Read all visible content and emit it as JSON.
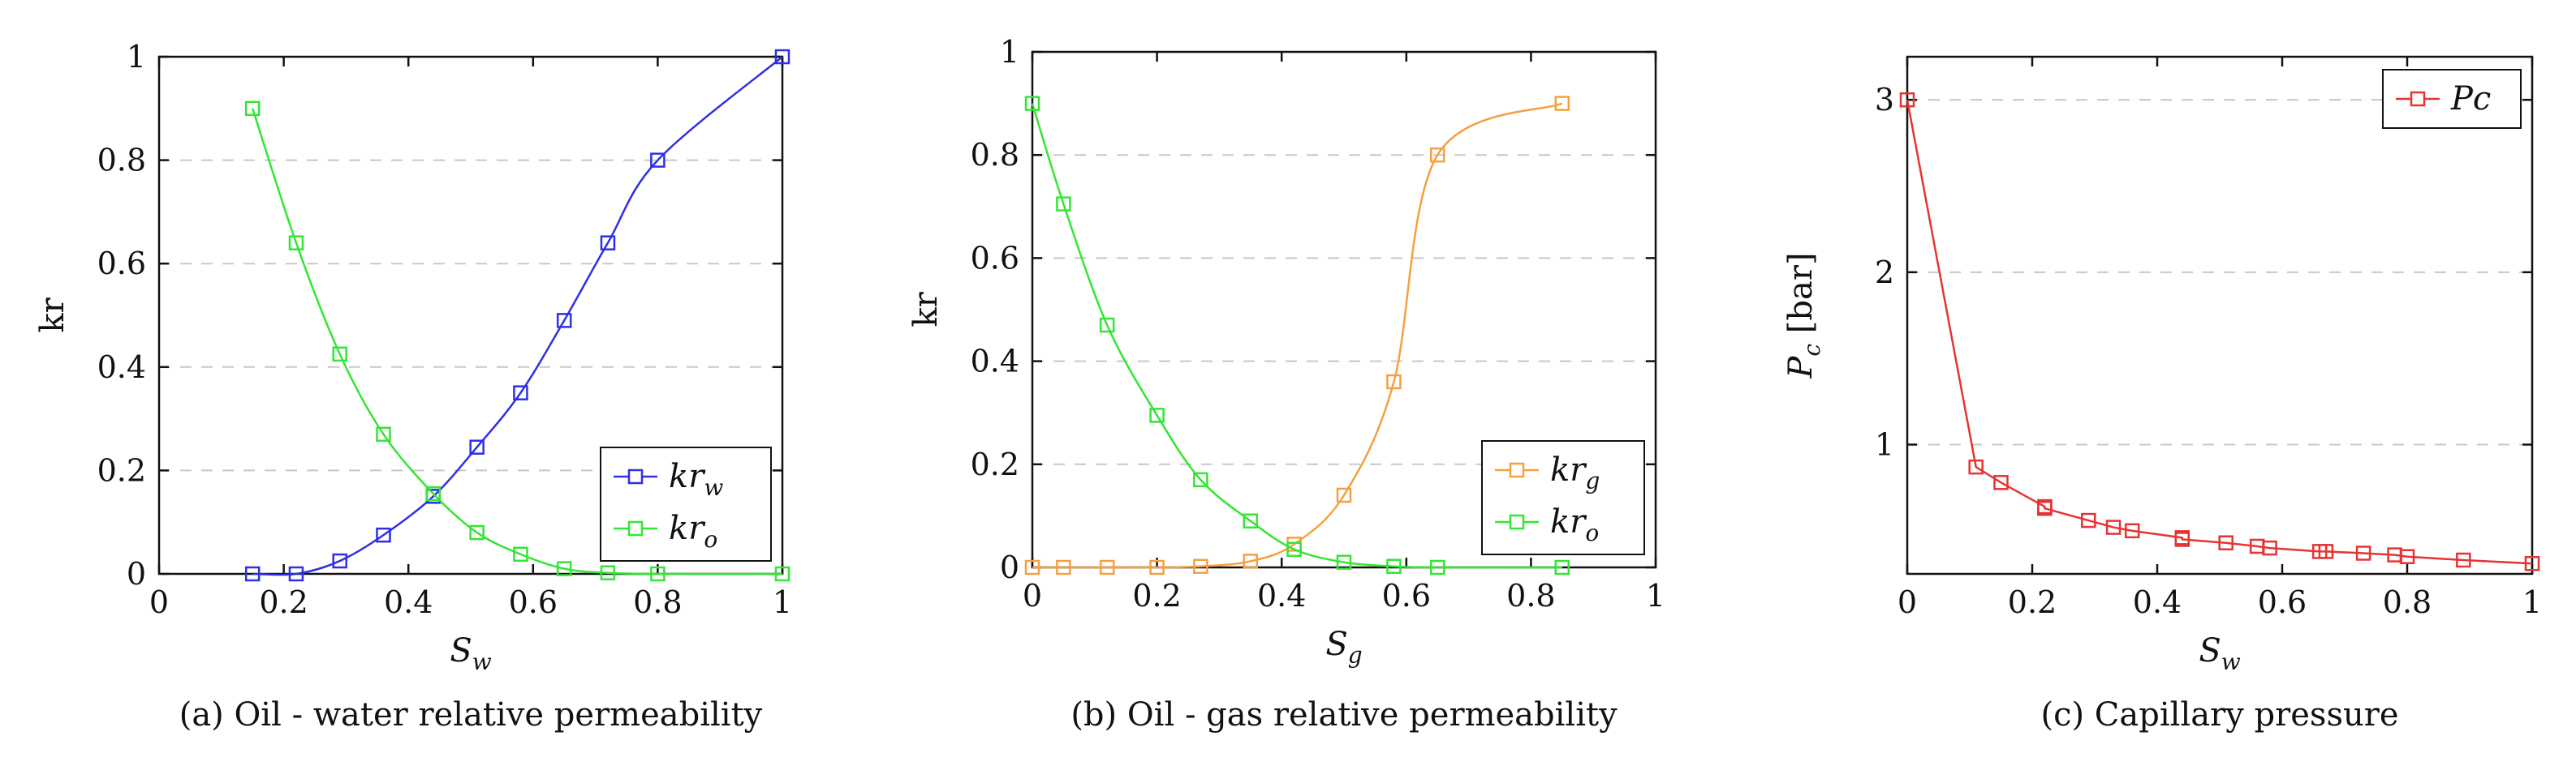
{
  "chart_data": [
    {
      "type": "line",
      "panel_label": "(a)",
      "caption": "(a) Oil - water relative permeability",
      "xlabel_base": "S",
      "xlabel_sub": "w",
      "ylabel_main": "kr",
      "ylabel_sub": "",
      "ylabel_suffix": "",
      "xlim": [
        0,
        1
      ],
      "ylim": [
        0,
        1
      ],
      "xticks": [
        0,
        0.2,
        0.4,
        0.6,
        0.8,
        1
      ],
      "xtick_labels": [
        "0",
        "0.2",
        "0.4",
        "0.6",
        "0.8",
        "1"
      ],
      "yticks": [
        0,
        0.2,
        0.4,
        0.6,
        0.8,
        1
      ],
      "ytick_labels": [
        "0",
        "0.2",
        "0.4",
        "0.6",
        "0.8",
        "1"
      ],
      "grid": "horizontal-dashed",
      "legend_position": "bottom-right",
      "smooth": true,
      "series": [
        {
          "name": "kr_w",
          "label_base": "kr",
          "label_sub": "w",
          "color": "#2f2fe6",
          "x": [
            0.15,
            0.22,
            0.29,
            0.36,
            0.44,
            0.51,
            0.58,
            0.65,
            0.72,
            0.8,
            1.0
          ],
          "y": [
            0.0,
            0.0,
            0.025,
            0.075,
            0.15,
            0.245,
            0.35,
            0.49,
            0.64,
            0.8,
            1.0
          ]
        },
        {
          "name": "kr_o",
          "label_base": "kr",
          "label_sub": "o",
          "color": "#33e633",
          "x": [
            0.15,
            0.22,
            0.29,
            0.36,
            0.44,
            0.51,
            0.58,
            0.65,
            0.72,
            0.8,
            1.0
          ],
          "y": [
            0.9,
            0.64,
            0.425,
            0.27,
            0.155,
            0.08,
            0.038,
            0.01,
            0.002,
            0.0,
            0.0
          ]
        }
      ]
    },
    {
      "type": "line",
      "panel_label": "(b)",
      "caption": "(b) Oil - gas relative permeability",
      "xlabel_base": "S",
      "xlabel_sub": "g",
      "ylabel_main": "kr",
      "ylabel_sub": "",
      "ylabel_suffix": "",
      "xlim": [
        0,
        1
      ],
      "ylim": [
        0,
        1
      ],
      "xticks": [
        0,
        0.2,
        0.4,
        0.6,
        0.8,
        1
      ],
      "xtick_labels": [
        "0",
        "0.2",
        "0.4",
        "0.6",
        "0.8",
        "1"
      ],
      "yticks": [
        0,
        0.2,
        0.4,
        0.6,
        0.8,
        1
      ],
      "ytick_labels": [
        "0",
        "0.2",
        "0.4",
        "0.6",
        "0.8",
        "1"
      ],
      "grid": "horizontal-dashed",
      "legend_position": "bottom-right",
      "smooth": true,
      "series": [
        {
          "name": "kr_g",
          "label_base": "kr",
          "label_sub": "g",
          "color": "#f5a040",
          "x": [
            0.0,
            0.05,
            0.12,
            0.2,
            0.27,
            0.35,
            0.42,
            0.5,
            0.58,
            0.65,
            0.85
          ],
          "y": [
            0.0,
            0.0,
            0.0,
            0.0,
            0.002,
            0.012,
            0.045,
            0.14,
            0.36,
            0.8,
            0.9
          ]
        },
        {
          "name": "kr_o",
          "label_base": "kr",
          "label_sub": "o",
          "color": "#33e633",
          "x": [
            0.0,
            0.05,
            0.12,
            0.2,
            0.27,
            0.35,
            0.42,
            0.5,
            0.58,
            0.65,
            0.85
          ],
          "y": [
            0.9,
            0.705,
            0.47,
            0.295,
            0.17,
            0.09,
            0.035,
            0.01,
            0.002,
            0.0,
            0.0
          ]
        }
      ]
    },
    {
      "type": "line",
      "panel_label": "(c)",
      "caption": "(c) Capillary pressure",
      "xlabel_base": "S",
      "xlabel_sub": "w",
      "ylabel_main": "P",
      "ylabel_sub": "c",
      "ylabel_suffix": " [bar]",
      "xlim": [
        0,
        1
      ],
      "ylim": [
        0.25,
        3.25
      ],
      "xticks": [
        0,
        0.2,
        0.4,
        0.6,
        0.8,
        1
      ],
      "xtick_labels": [
        "0",
        "0.2",
        "0.4",
        "0.6",
        "0.8",
        "1"
      ],
      "yticks": [
        1,
        2,
        3
      ],
      "ytick_labels": [
        "1",
        "2",
        "3"
      ],
      "grid": "horizontal-dashed",
      "legend_position": "top-right",
      "smooth": false,
      "series": [
        {
          "name": "Pc",
          "label_base": "Pc",
          "label_sub": "",
          "color": "#e63333",
          "x": [
            0.0,
            0.11,
            0.15,
            0.22,
            0.22,
            0.29,
            0.33,
            0.36,
            0.44,
            0.44,
            0.51,
            0.56,
            0.58,
            0.66,
            0.67,
            0.73,
            0.78,
            0.8,
            0.89,
            1.0
          ],
          "y": [
            3.0,
            0.87,
            0.78,
            0.64,
            0.63,
            0.56,
            0.52,
            0.5,
            0.46,
            0.45,
            0.43,
            0.41,
            0.4,
            0.38,
            0.38,
            0.37,
            0.36,
            0.35,
            0.33,
            0.31
          ]
        }
      ]
    }
  ]
}
